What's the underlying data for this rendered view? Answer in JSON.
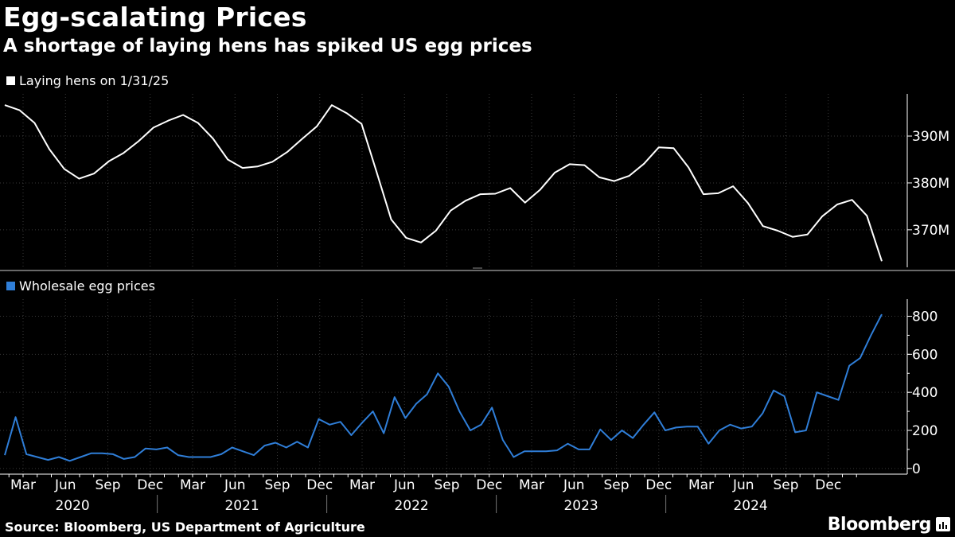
{
  "title": "Egg-scalating Prices",
  "subtitle": "A shortage of laying hens has spiked US egg prices",
  "source": "Source: Bloomberg, US Department of Agriculture",
  "brand": "Bloomberg",
  "colors": {
    "hens": "#ffffff",
    "prices": "#2f7ed8",
    "grid": "#3a3a3a",
    "axis": "#ffffff"
  },
  "chart_data": [
    {
      "type": "line",
      "name": "hens",
      "legend": "Laying hens on 1/31/25",
      "x_start": "2020-01",
      "x_end": "2025-01",
      "ylim": [
        362,
        399
      ],
      "yticks": [
        370,
        380,
        390
      ],
      "ytick_labels": [
        "370M",
        "380M",
        "390M"
      ],
      "series": [
        {
          "name": "Laying hens on 1/31/25",
          "unit": "M",
          "values": [
            396.6,
            395.5,
            392.8,
            387.2,
            383.0,
            380.9,
            382.0,
            384.6,
            386.4,
            388.9,
            391.8,
            393.3,
            394.5,
            392.8,
            389.5,
            385.0,
            383.2,
            383.5,
            384.5,
            386.6,
            389.4,
            392.1,
            396.6,
            394.9,
            392.6,
            382.5,
            372.2,
            368.3,
            367.3,
            369.8,
            374.1,
            376.2,
            377.6,
            377.7,
            378.9,
            375.8,
            378.5,
            382.2,
            384.0,
            383.8,
            381.2,
            380.4,
            381.5,
            384.1,
            387.6,
            387.4,
            383.3,
            377.6,
            377.8,
            379.3,
            375.7,
            370.8,
            369.8,
            368.5,
            369.0,
            372.9,
            375.4,
            376.4,
            373.0,
            363.3
          ]
        }
      ]
    },
    {
      "type": "line",
      "name": "prices",
      "legend": "Wholesale egg prices",
      "x_start": "2020-01",
      "x_end": "2025-01",
      "ylim": [
        -30,
        890
      ],
      "yticks": [
        0,
        200,
        400,
        600,
        800
      ],
      "ytick_labels": [
        "0",
        "200",
        "400",
        "600",
        "800"
      ],
      "series": [
        {
          "name": "Wholesale egg prices",
          "values": [
            70,
            270,
            75,
            60,
            45,
            60,
            40,
            60,
            80,
            80,
            75,
            50,
            60,
            105,
            100,
            110,
            70,
            60,
            60,
            60,
            75,
            110,
            90,
            70,
            120,
            135,
            110,
            140,
            110,
            260,
            230,
            245,
            175,
            240,
            300,
            185,
            375,
            265,
            340,
            390,
            500,
            430,
            300,
            200,
            230,
            320,
            150,
            60,
            90,
            90,
            90,
            95,
            130,
            100,
            100,
            205,
            150,
            200,
            160,
            230,
            295,
            200,
            215,
            220,
            220,
            130,
            200,
            230,
            210,
            220,
            290,
            410,
            380,
            190,
            200,
            400,
            380,
            360,
            540,
            580,
            700,
            810
          ]
        }
      ]
    }
  ],
  "x_axis": {
    "month_labels": [
      "Mar",
      "Jun",
      "Sep",
      "Dec",
      "Mar",
      "Jun",
      "Sep",
      "Dec",
      "Mar",
      "Jun",
      "Sep",
      "Dec",
      "Mar",
      "Jun",
      "Sep",
      "Dec",
      "Mar",
      "Jun",
      "Sep",
      "Dec"
    ],
    "years": [
      "2020",
      "2021",
      "2022",
      "2023",
      "2024"
    ]
  }
}
